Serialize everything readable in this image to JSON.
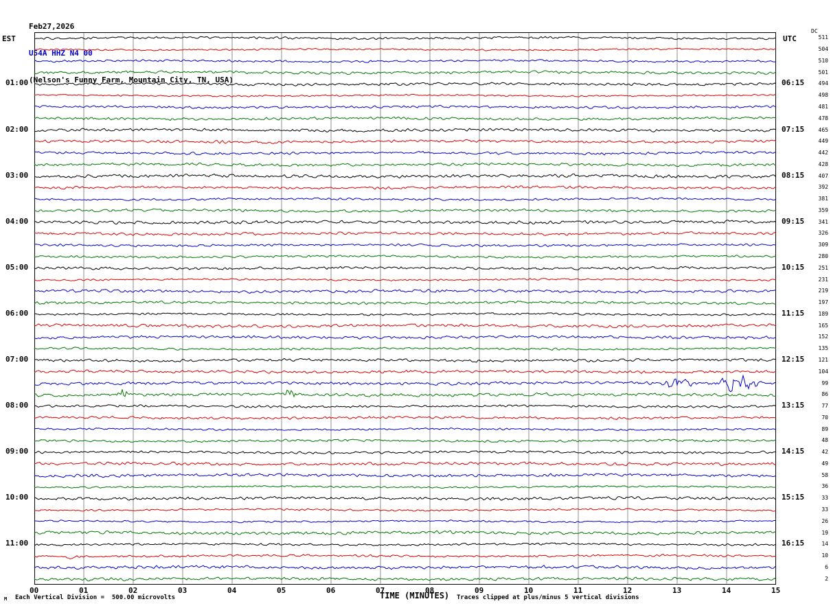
{
  "header": {
    "date": "Feb27,2026",
    "station": "U54A HHZ N4 00",
    "location": "(Nelson's Funny Farm, Mountain City, TN, USA)"
  },
  "axes": {
    "left_title": "EST",
    "right_title": "UTC",
    "dc_title": "DC",
    "x_title": "TIME (MINUTES)"
  },
  "footer": {
    "scale_mark": "M",
    "left_note": "Each Vertical Division =  500.00 microvolts",
    "right_note": "Traces clipped at plus/minus 5 vertical divisions"
  },
  "chart_data": {
    "type": "line",
    "title": "U54A HHZ N4 00 helicorder record, Feb27,2026",
    "x_axis": {
      "label": "TIME (MINUTES)",
      "min": 0,
      "max": 15,
      "ticks": [
        "00",
        "01",
        "02",
        "03",
        "04",
        "05",
        "06",
        "07",
        "08",
        "09",
        "10",
        "11",
        "12",
        "13",
        "14",
        "15"
      ]
    },
    "minutes_per_row": 15,
    "palette": {
      "black": "#000000",
      "red": "#dd0000",
      "blue": "#0000cc",
      "green": "#007700"
    },
    "rows": [
      {
        "c": "black",
        "est": "",
        "utc": "",
        "dc": "511"
      },
      {
        "c": "red",
        "est": "",
        "utc": "",
        "dc": "504"
      },
      {
        "c": "blue",
        "est": "",
        "utc": "",
        "dc": "510"
      },
      {
        "c": "green",
        "est": "",
        "utc": "",
        "dc": "501"
      },
      {
        "c": "black",
        "est": "01:00",
        "utc": "06:15",
        "dc": "494"
      },
      {
        "c": "red",
        "est": "",
        "utc": "",
        "dc": "498"
      },
      {
        "c": "blue",
        "est": "",
        "utc": "",
        "dc": "481"
      },
      {
        "c": "green",
        "est": "",
        "utc": "",
        "dc": "478"
      },
      {
        "c": "black",
        "est": "02:00",
        "utc": "07:15",
        "dc": "465"
      },
      {
        "c": "red",
        "est": "",
        "utc": "",
        "dc": "449"
      },
      {
        "c": "blue",
        "est": "",
        "utc": "",
        "dc": "442"
      },
      {
        "c": "green",
        "est": "",
        "utc": "",
        "dc": "428"
      },
      {
        "c": "black",
        "est": "03:00",
        "utc": "08:15",
        "dc": "407"
      },
      {
        "c": "red",
        "est": "",
        "utc": "",
        "dc": "392"
      },
      {
        "c": "blue",
        "est": "",
        "utc": "",
        "dc": "381"
      },
      {
        "c": "green",
        "est": "",
        "utc": "",
        "dc": "359"
      },
      {
        "c": "black",
        "est": "04:00",
        "utc": "09:15",
        "dc": "341"
      },
      {
        "c": "red",
        "est": "",
        "utc": "",
        "dc": "326"
      },
      {
        "c": "blue",
        "est": "",
        "utc": "",
        "dc": "309"
      },
      {
        "c": "green",
        "est": "",
        "utc": "",
        "dc": "280"
      },
      {
        "c": "black",
        "est": "05:00",
        "utc": "10:15",
        "dc": "251"
      },
      {
        "c": "red",
        "est": "",
        "utc": "",
        "dc": "231"
      },
      {
        "c": "blue",
        "est": "",
        "utc": "",
        "dc": "219"
      },
      {
        "c": "green",
        "est": "",
        "utc": "",
        "dc": "197"
      },
      {
        "c": "black",
        "est": "06:00",
        "utc": "11:15",
        "dc": "189"
      },
      {
        "c": "red",
        "est": "",
        "utc": "",
        "dc": "165"
      },
      {
        "c": "blue",
        "est": "",
        "utc": "",
        "dc": "152"
      },
      {
        "c": "green",
        "est": "",
        "utc": "",
        "dc": "135"
      },
      {
        "c": "black",
        "est": "07:00",
        "utc": "12:15",
        "dc": "121"
      },
      {
        "c": "red",
        "est": "",
        "utc": "",
        "dc": "104"
      },
      {
        "c": "blue",
        "est": "",
        "utc": "",
        "dc": "99"
      },
      {
        "c": "green",
        "est": "",
        "utc": "",
        "dc": "86"
      },
      {
        "c": "black",
        "est": "08:00",
        "utc": "13:15",
        "dc": "77"
      },
      {
        "c": "red",
        "est": "",
        "utc": "",
        "dc": "70"
      },
      {
        "c": "blue",
        "est": "",
        "utc": "",
        "dc": "89"
      },
      {
        "c": "green",
        "est": "",
        "utc": "",
        "dc": "48"
      },
      {
        "c": "black",
        "est": "09:00",
        "utc": "14:15",
        "dc": "42"
      },
      {
        "c": "red",
        "est": "",
        "utc": "",
        "dc": "49"
      },
      {
        "c": "blue",
        "est": "",
        "utc": "",
        "dc": "58"
      },
      {
        "c": "green",
        "est": "",
        "utc": "",
        "dc": "36"
      },
      {
        "c": "black",
        "est": "10:00",
        "utc": "15:15",
        "dc": "33"
      },
      {
        "c": "red",
        "est": "",
        "utc": "",
        "dc": "33"
      },
      {
        "c": "blue",
        "est": "",
        "utc": "",
        "dc": "26"
      },
      {
        "c": "green",
        "est": "",
        "utc": "",
        "dc": "19"
      },
      {
        "c": "black",
        "est": "11:00",
        "utc": "16:15",
        "dc": "14"
      },
      {
        "c": "red",
        "est": "",
        "utc": "",
        "dc": "10"
      },
      {
        "c": "blue",
        "est": "",
        "utc": "",
        "dc": "6"
      },
      {
        "c": "green",
        "est": "",
        "utc": "",
        "dc": "2"
      }
    ],
    "events": [
      {
        "row": 30,
        "start": 12.55,
        "end": 13.35,
        "amp": 9
      },
      {
        "row": 30,
        "start": 13.75,
        "end": 14.75,
        "amp": 14
      },
      {
        "row": 31,
        "start": 1.65,
        "end": 1.9,
        "amp": 12
      },
      {
        "row": 31,
        "start": 5.05,
        "end": 5.3,
        "amp": 9
      },
      {
        "row": 45,
        "start": 0.6,
        "end": 0.95,
        "amp": 5
      }
    ]
  }
}
